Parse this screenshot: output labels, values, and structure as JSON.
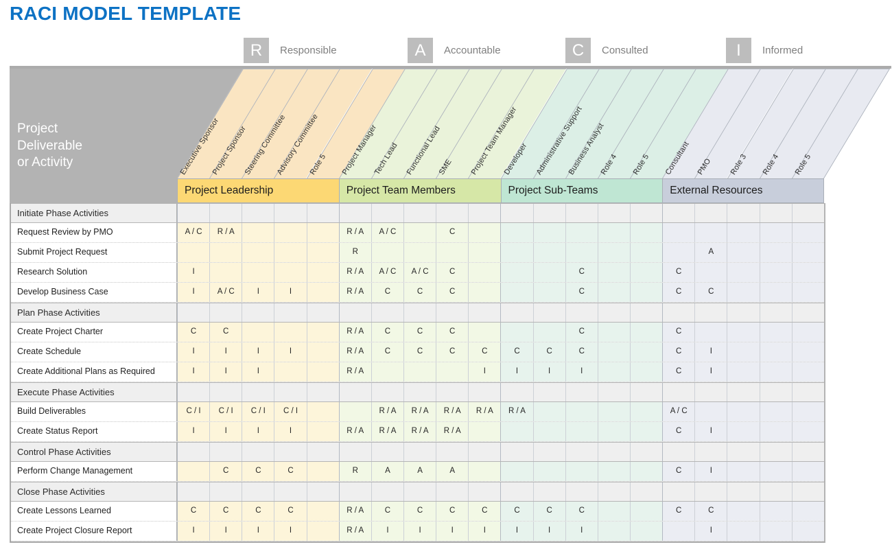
{
  "title": "RACI MODEL TEMPLATE",
  "legend": {
    "items": [
      {
        "letter": "R",
        "label": "Responsible"
      },
      {
        "letter": "A",
        "label": "Accountable"
      },
      {
        "letter": "C",
        "label": "Consulted"
      },
      {
        "letter": "I",
        "label": "Informed"
      }
    ]
  },
  "corner": {
    "line1": "Project",
    "line2": "Deliverable",
    "line3": "or Activity"
  },
  "colors": {
    "title_blue": "#0d72c4",
    "legend_box_gray": "#bdbdbd",
    "legend_text_gray": "#7f7f7f",
    "corner_gray": "#b3b3b3",
    "section_row_gray": "#efefef",
    "top_bar_gray": "#ababab"
  },
  "groups": [
    {
      "name": "Project Leadership",
      "band_color": "#fcd874",
      "head_color": "#fae5c2",
      "cell_color": "#fdf5da",
      "roles": [
        "Executive Sponsor",
        "Project Sponsor",
        "Steering Committee",
        "Advisory Committee",
        "Role 5"
      ]
    },
    {
      "name": "Project Team Members",
      "band_color": "#d6e7a7",
      "head_color": "#eaf3da",
      "cell_color": "#f2f8e5",
      "roles": [
        "Project Manager",
        "Tech Lead",
        "Functional Lead",
        "SME",
        "Project Team Manager"
      ]
    },
    {
      "name": "Project Sub-Teams",
      "band_color": "#bfe6d3",
      "head_color": "#dcefe6",
      "cell_color": "#e7f3ed",
      "roles": [
        "Developer",
        "Administrative Support",
        "Business Analyst",
        "Role 4",
        "Role 5"
      ]
    },
    {
      "name": "External Resources",
      "band_color": "#c8cedb",
      "head_color": "#e8eaf1",
      "cell_color": "#ebedf3",
      "roles": [
        "Consultant",
        "PMO",
        "Role 3",
        "Role 4",
        "Role 5"
      ]
    }
  ],
  "rows": [
    {
      "type": "section",
      "label": "Initiate Phase Activities",
      "values": []
    },
    {
      "type": "activity",
      "label": "Request Review by PMO",
      "values": [
        "A / C",
        "R / A",
        "",
        "",
        "",
        "R / A",
        "A / C",
        "",
        "C",
        "",
        "",
        "",
        "",
        "",
        "",
        "",
        "",
        "",
        "",
        ""
      ]
    },
    {
      "type": "activity",
      "label": "Submit Project Request",
      "values": [
        "",
        "",
        "",
        "",
        "",
        "R",
        "",
        "",
        "",
        "",
        "",
        "",
        "",
        "",
        "",
        "",
        "A",
        "",
        "",
        ""
      ]
    },
    {
      "type": "activity",
      "label": "Research Solution",
      "values": [
        "I",
        "",
        "",
        "",
        "",
        "R / A",
        "A / C",
        "A / C",
        "C",
        "",
        "",
        "",
        "C",
        "",
        "",
        "C",
        "",
        "",
        "",
        ""
      ]
    },
    {
      "type": "activity",
      "label": "Develop Business Case",
      "values": [
        "I",
        "A / C",
        "I",
        "I",
        "",
        "R / A",
        "C",
        "C",
        "C",
        "",
        "",
        "",
        "C",
        "",
        "",
        "C",
        "C",
        "",
        "",
        ""
      ]
    },
    {
      "type": "section",
      "label": "Plan Phase Activities",
      "values": []
    },
    {
      "type": "activity",
      "label": "Create Project Charter",
      "values": [
        "C",
        "C",
        "",
        "",
        "",
        "R / A",
        "C",
        "C",
        "C",
        "",
        "",
        "",
        "C",
        "",
        "",
        "C",
        "",
        "",
        "",
        ""
      ]
    },
    {
      "type": "activity",
      "label": "Create Schedule",
      "values": [
        "I",
        "I",
        "I",
        "I",
        "",
        "R / A",
        "C",
        "C",
        "C",
        "C",
        "C",
        "C",
        "C",
        "",
        "",
        "C",
        "I",
        "",
        "",
        ""
      ]
    },
    {
      "type": "activity",
      "label": "Create Additional Plans as Required",
      "values": [
        "I",
        "I",
        "I",
        "",
        "",
        "R / A",
        "",
        "",
        "",
        "I",
        "I",
        "I",
        "I",
        "",
        "",
        "C",
        "I",
        "",
        "",
        ""
      ]
    },
    {
      "type": "section",
      "label": "Execute Phase Activities",
      "values": []
    },
    {
      "type": "activity",
      "label": "Build Deliverables",
      "values": [
        "C / I",
        "C / I",
        "C / I",
        "C / I",
        "",
        "",
        "R / A",
        "R / A",
        "R / A",
        "R / A",
        "R / A",
        "",
        "",
        "",
        "",
        "A / C",
        "",
        "",
        "",
        ""
      ]
    },
    {
      "type": "activity",
      "label": "Create Status Report",
      "values": [
        "I",
        "I",
        "I",
        "I",
        "",
        "R / A",
        "R / A",
        "R / A",
        "R / A",
        "",
        "",
        "",
        "",
        "",
        "",
        "C",
        "I",
        "",
        "",
        ""
      ]
    },
    {
      "type": "section",
      "label": "Control Phase Activities",
      "values": []
    },
    {
      "type": "activity",
      "label": "Perform Change Management",
      "values": [
        "",
        "C",
        "C",
        "C",
        "",
        "R",
        "A",
        "A",
        "A",
        "",
        "",
        "",
        "",
        "",
        "",
        "C",
        "I",
        "",
        "",
        ""
      ]
    },
    {
      "type": "section",
      "label": "Close Phase Activities",
      "values": []
    },
    {
      "type": "activity",
      "label": "Create Lessons Learned",
      "values": [
        "C",
        "C",
        "C",
        "C",
        "",
        "R / A",
        "C",
        "C",
        "C",
        "C",
        "C",
        "C",
        "C",
        "",
        "",
        "C",
        "C",
        "",
        "",
        ""
      ]
    },
    {
      "type": "activity",
      "label": "Create Project Closure Report",
      "values": [
        "I",
        "I",
        "I",
        "I",
        "",
        "R / A",
        "I",
        "I",
        "I",
        "I",
        "I",
        "I",
        "I",
        "",
        "",
        "",
        "I",
        "",
        "",
        ""
      ]
    }
  ]
}
